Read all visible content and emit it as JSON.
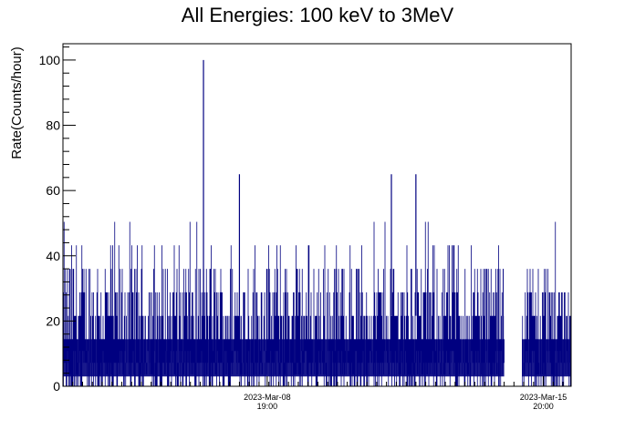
{
  "chart_data": {
    "type": "line",
    "title": "All Energies:  100 keV to 3MeV",
    "xlabel": "",
    "ylabel": "Rate(Counts/hour)",
    "ylim": [
      0,
      105
    ],
    "yticks": [
      0,
      20,
      40,
      60,
      80,
      100
    ],
    "xlim": [
      "2023-Mar-03 14:00",
      "2023-Mar-16 13:00"
    ],
    "xticks": [
      {
        "value": "2023-Mar-08 19:00",
        "line1": "2023-Mar-08",
        "line2": "19:00"
      },
      {
        "value": "2023-Mar-15 20:00",
        "line1": "2023-Mar-15",
        "line2": "20:00"
      }
    ],
    "grid": false,
    "legend": "none",
    "color": "#000080",
    "gap": [
      "2023-Mar-14 20:00",
      "2023-Mar-15 07:00"
    ],
    "series": [
      {
        "name": "",
        "description_levels": [
          0,
          7.2,
          14.4,
          21.6,
          28.8,
          36,
          43.2,
          50.4,
          57.6,
          64.8
        ],
        "peaks": [
          {
            "x": "2023-Mar-07 04:00",
            "y": 100
          },
          {
            "x": "2023-Mar-08 02:00",
            "y": 65
          },
          {
            "x": "2023-Mar-11 23:00",
            "y": 65
          },
          {
            "x": "2023-Mar-12 14:00",
            "y": 65
          }
        ]
      }
    ]
  }
}
